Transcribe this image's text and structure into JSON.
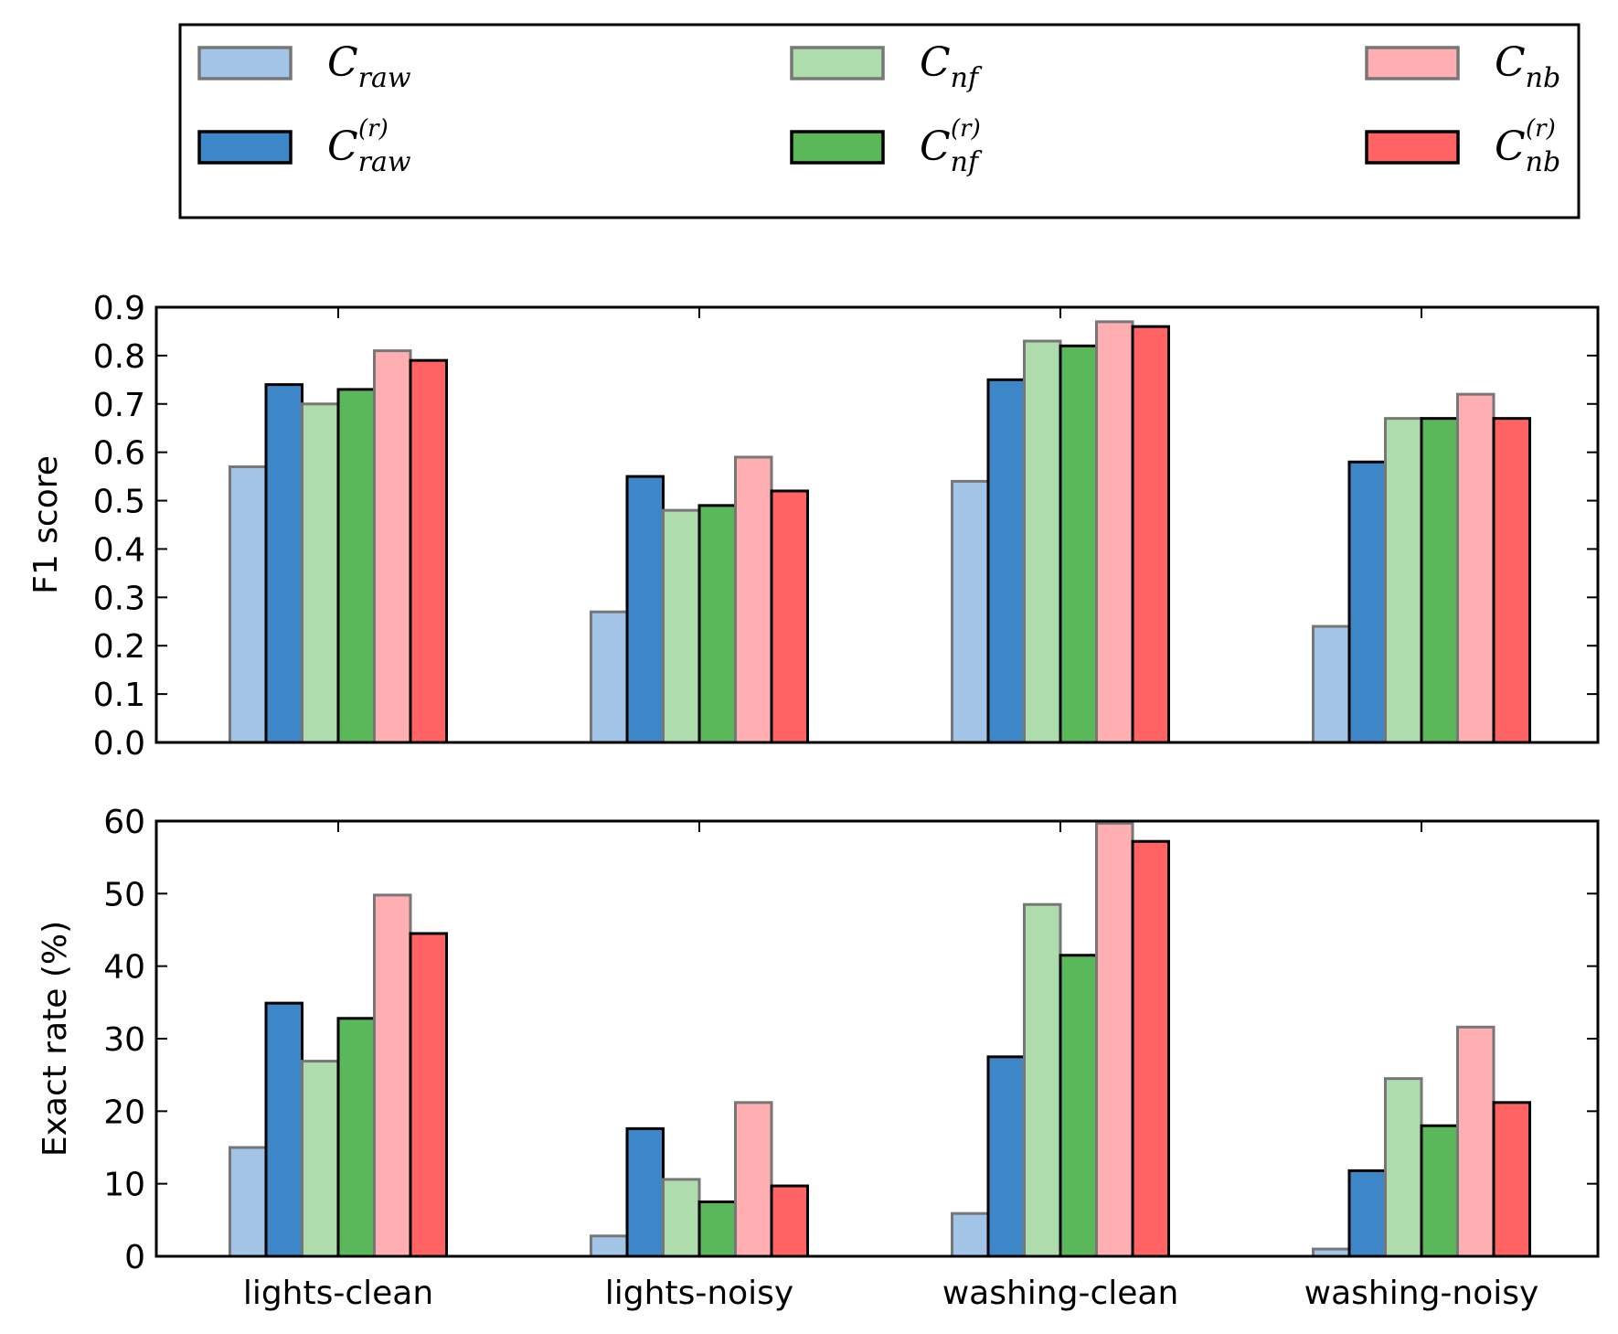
{
  "colors": {
    "raw": "#a2c4e6",
    "raw_r": "#3d87c8",
    "nf": "#aedcac",
    "nf_r": "#5ab75a",
    "nb": "#ffaeb1",
    "nb_r": "#ff6363"
  },
  "legend": {
    "placement": "top",
    "items": [
      {
        "key": "raw",
        "base": "C",
        "sub": "raw",
        "sup": "",
        "style": "light"
      },
      {
        "key": "raw_r",
        "base": "C",
        "sub": "raw",
        "sup": "(r)",
        "style": "dark"
      },
      {
        "key": "nf",
        "base": "C",
        "sub": "nf",
        "sup": "",
        "style": "light"
      },
      {
        "key": "nf_r",
        "base": "C",
        "sub": "nf",
        "sup": "(r)",
        "style": "dark"
      },
      {
        "key": "nb",
        "base": "C",
        "sub": "nb",
        "sup": "",
        "style": "light"
      },
      {
        "key": "nb_r",
        "base": "C",
        "sub": "nb",
        "sup": "(r)",
        "style": "dark"
      }
    ]
  },
  "chart_data": [
    {
      "type": "bar",
      "ylabel": "F1 score",
      "ylim": [
        0,
        0.9
      ],
      "yticks": [
        "0.0",
        "0.1",
        "0.2",
        "0.3",
        "0.4",
        "0.5",
        "0.6",
        "0.7",
        "0.8",
        "0.9"
      ],
      "categories": [
        "lights-clean",
        "lights-noisy",
        "washing-clean",
        "washing-noisy"
      ],
      "show_xticklabels": false,
      "series": [
        {
          "key": "raw",
          "values": [
            0.57,
            0.27,
            0.54,
            0.24
          ]
        },
        {
          "key": "raw_r",
          "values": [
            0.74,
            0.55,
            0.75,
            0.58
          ]
        },
        {
          "key": "nf",
          "values": [
            0.7,
            0.48,
            0.83,
            0.67
          ]
        },
        {
          "key": "nf_r",
          "values": [
            0.73,
            0.49,
            0.82,
            0.67
          ]
        },
        {
          "key": "nb",
          "values": [
            0.81,
            0.59,
            0.87,
            0.72
          ]
        },
        {
          "key": "nb_r",
          "values": [
            0.79,
            0.52,
            0.86,
            0.67
          ]
        }
      ]
    },
    {
      "type": "bar",
      "ylabel": "Exact rate (%)",
      "ylim": [
        0,
        60
      ],
      "yticks": [
        "0",
        "10",
        "20",
        "30",
        "40",
        "50",
        "60"
      ],
      "categories": [
        "lights-clean",
        "lights-noisy",
        "washing-clean",
        "washing-noisy"
      ],
      "show_xticklabels": true,
      "series": [
        {
          "key": "raw",
          "values": [
            15.0,
            2.8,
            5.9,
            1.0
          ]
        },
        {
          "key": "raw_r",
          "values": [
            34.9,
            17.6,
            27.5,
            11.8
          ]
        },
        {
          "key": "nf",
          "values": [
            26.9,
            10.6,
            48.5,
            24.5
          ]
        },
        {
          "key": "nf_r",
          "values": [
            32.8,
            7.5,
            41.5,
            18.0
          ]
        },
        {
          "key": "nb",
          "values": [
            49.8,
            21.2,
            59.7,
            31.6
          ]
        },
        {
          "key": "nb_r",
          "values": [
            44.5,
            9.7,
            57.2,
            21.2
          ]
        }
      ]
    }
  ]
}
